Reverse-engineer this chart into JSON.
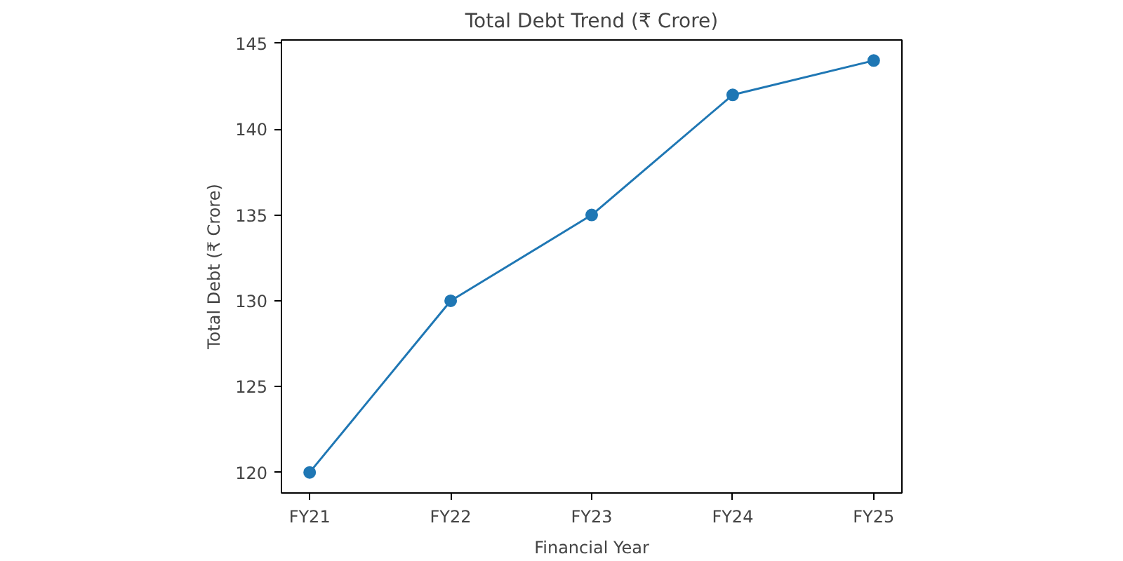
{
  "chart_data": {
    "type": "line",
    "title": "Total Debt Trend (₹ Crore)",
    "xlabel": "Financial Year",
    "ylabel": "Total Debt (₹ Crore)",
    "categories": [
      "FY21",
      "FY22",
      "FY23",
      "FY24",
      "FY25"
    ],
    "series": [
      {
        "color": "#1f77b4",
        "values": [
          120,
          130,
          135,
          142,
          144
        ]
      }
    ],
    "ylim": [
      118.8,
      145.2
    ],
    "yticks": [
      120,
      125,
      130,
      135,
      140,
      145
    ],
    "grid": false,
    "marker": "circle",
    "line_style": "solid"
  }
}
